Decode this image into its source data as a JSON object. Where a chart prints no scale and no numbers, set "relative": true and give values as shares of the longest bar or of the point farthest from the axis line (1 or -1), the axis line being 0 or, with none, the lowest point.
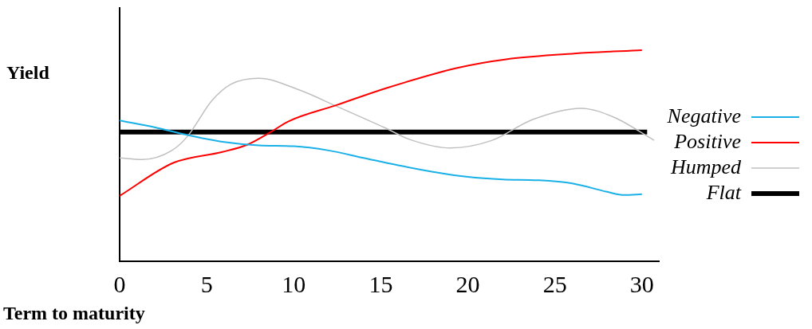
{
  "chart_data": {
    "type": "line",
    "xlabel": "Term to maturity",
    "ylabel": "Yield",
    "relative": true,
    "xlim": [
      0,
      31
    ],
    "xticks": [
      0,
      5,
      10,
      15,
      20,
      25,
      30
    ],
    "tick_labels": "x",
    "legend": "right",
    "grid": false,
    "marker": "none",
    "series": [
      {
        "name": "Negative",
        "color": "#1ab0e8",
        "x": [
          0,
          2,
          4,
          6,
          8,
          10,
          12,
          14,
          16,
          18,
          20,
          22,
          24,
          26,
          28,
          29,
          30
        ],
        "values": [
          0.667,
          0.635,
          0.596,
          0.565,
          0.549,
          0.545,
          0.525,
          0.49,
          0.455,
          0.424,
          0.4,
          0.388,
          0.384,
          0.369,
          0.329,
          0.314,
          0.318
        ]
      },
      {
        "name": "Positive",
        "color": "#ff0000",
        "x": [
          0,
          3.1,
          5.9,
          7.35,
          8.75,
          9.7,
          12.5,
          15.3,
          19.5,
          22.2,
          26.1,
          30
        ],
        "values": [
          0.31,
          0.467,
          0.518,
          0.553,
          0.616,
          0.663,
          0.741,
          0.82,
          0.918,
          0.957,
          0.984,
          1
        ]
      },
      {
        "name": "Humped",
        "color": "#bfbfbf",
        "x": [
          0,
          1.3,
          3,
          3.9,
          5.3,
          6.4,
          8,
          10.3,
          12.5,
          15.3,
          16.7,
          19,
          21.4,
          23.7,
          26.5,
          28.4,
          30.7
        ],
        "values": [
          0.49,
          0.482,
          0.525,
          0.592,
          0.761,
          0.839,
          0.867,
          0.812,
          0.733,
          0.63,
          0.576,
          0.537,
          0.573,
          0.671,
          0.725,
          0.682,
          0.573
        ]
      },
      {
        "name": "Flat",
        "color": "#000000",
        "x": [
          0,
          30.3
        ],
        "values": [
          0.612,
          0.612
        ]
      }
    ]
  }
}
